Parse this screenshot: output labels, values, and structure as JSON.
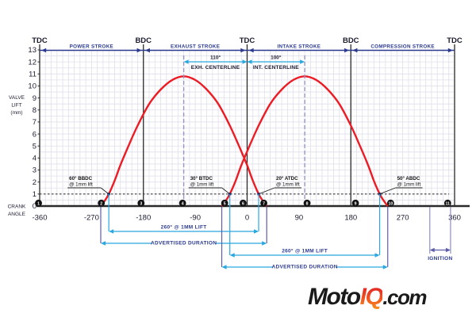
{
  "branding": {
    "logo_moto": "Moto",
    "logo_iq": "IQ",
    "logo_tld": ".com"
  },
  "colors": {
    "curve_red": "#ed1c24",
    "band_navy": "#2b3a8f",
    "light_blue": "#29a8e0",
    "lavender": "#9595cd",
    "adv_purple": "#5d5da8",
    "grid": "#dfdfec",
    "ink": "#1b1b30",
    "axis_black": "#2a2a2a"
  },
  "chart_data": {
    "type": "line",
    "x_axis": {
      "label_lines": [
        "CRANK",
        "ANGLE"
      ],
      "range": [
        -360,
        360
      ],
      "ticks": [
        -360,
        -270,
        -180,
        -90,
        0,
        90,
        180,
        270,
        360
      ],
      "minor_grid_step_deg": 10
    },
    "y_axis": {
      "label_lines": [
        "VALVE",
        "LIFT",
        "(mm)"
      ],
      "range": [
        0,
        13
      ],
      "ticks": [
        0,
        1,
        2,
        3,
        4,
        5,
        6,
        7,
        8,
        9,
        10,
        11,
        12,
        13
      ],
      "minor_grid_step_mm": 0.5
    },
    "dead_centers": [
      {
        "label": "TDC",
        "deg": -360
      },
      {
        "label": "BDC",
        "deg": -180
      },
      {
        "label": "TDC",
        "deg": 0
      },
      {
        "label": "BDC",
        "deg": 180
      },
      {
        "label": "TDC",
        "deg": 360
      }
    ],
    "strokes": [
      {
        "label": "POWER STROKE",
        "from_deg": -360,
        "to_deg": -180
      },
      {
        "label": "EXHAUST STROKE",
        "from_deg": -180,
        "to_deg": 0
      },
      {
        "label": "INTAKE STROKE",
        "from_deg": 0,
        "to_deg": 180
      },
      {
        "label": "COMPRESSION STROKE",
        "from_deg": 180,
        "to_deg": 360
      }
    ],
    "reference_line_1mm": {
      "lift_mm": 1
    },
    "series": [
      {
        "name": "exhaust-valve-lift",
        "centerline_deg": -110,
        "peak_lift_mm": 10.8,
        "open_1mm_deg": -240,
        "close_1mm_deg": 20,
        "duration_1mm_deg": 260,
        "open_advertised_deg": -254,
        "close_advertised_deg": 34
      },
      {
        "name": "intake-valve-lift",
        "centerline_deg": 100,
        "peak_lift_mm": 10.8,
        "open_1mm_deg": -30,
        "close_1mm_deg": 230,
        "duration_1mm_deg": 260,
        "open_advertised_deg": -44,
        "close_advertised_deg": 244
      }
    ],
    "lift_profile_deg_mm": [
      [
        0,
        10.8
      ],
      [
        20,
        10.5
      ],
      [
        40,
        9.7
      ],
      [
        60,
        8.5
      ],
      [
        80,
        6.7
      ],
      [
        95,
        5.1
      ],
      [
        110,
        3.4
      ],
      [
        120,
        2.1
      ],
      [
        130,
        1.0
      ],
      [
        137,
        0.45
      ],
      [
        144,
        0
      ]
    ],
    "centerline_annotations": [
      {
        "value": "110°",
        "label": "EXH. CENTERLINE",
        "from_deg": -110,
        "to_deg": 0
      },
      {
        "value": "100°",
        "label": "INT. CENTERLINE",
        "from_deg": 0,
        "to_deg": 100
      }
    ],
    "point_callouts": [
      {
        "line1": "60° BBDC",
        "line2": "@ 1mm lift",
        "target_deg": -240,
        "side": "left"
      },
      {
        "line1": "30° BTDC",
        "line2": "@ 1mm lift",
        "target_deg": -30,
        "side": "left"
      },
      {
        "line1": "20° ATDC",
        "line2": "@ 1mm lift",
        "target_deg": 20,
        "side": "right"
      },
      {
        "line1": "50° ABDC",
        "line2": "@ 1mm lift",
        "target_deg": 230,
        "side": "right"
      }
    ],
    "event_markers": [
      {
        "num": "1",
        "deg": -362
      },
      {
        "num": "2",
        "deg": -253
      },
      {
        "num": "3",
        "deg": -184
      },
      {
        "num": "4",
        "deg": -112
      },
      {
        "num": "5",
        "deg": -39
      },
      {
        "num": "6",
        "deg": -7
      },
      {
        "num": "7",
        "deg": 29
      },
      {
        "num": "8",
        "deg": 104
      },
      {
        "num": "9",
        "deg": 188
      },
      {
        "num": "10",
        "deg": 249
      },
      {
        "num": "11",
        "deg": 348
      }
    ],
    "duration_spans": [
      {
        "label": "260° @ 1MM LIFT",
        "from_deg": -240,
        "to_deg": 20,
        "row": 0,
        "style": "lift1mm"
      },
      {
        "label": "ADVERTISED DURATION",
        "from_deg": -254,
        "to_deg": 34,
        "row": 1,
        "style": "advertised"
      },
      {
        "label": "260° @ 1MM LIFT",
        "from_deg": -30,
        "to_deg": 230,
        "row": 2,
        "style": "lift1mm"
      },
      {
        "label": "ADVERTISED DURATION",
        "from_deg": -44,
        "to_deg": 244,
        "row": 3,
        "style": "advertised"
      }
    ],
    "ignition": {
      "label": "IGNITION",
      "from_deg": 317,
      "to_deg": 353
    }
  }
}
